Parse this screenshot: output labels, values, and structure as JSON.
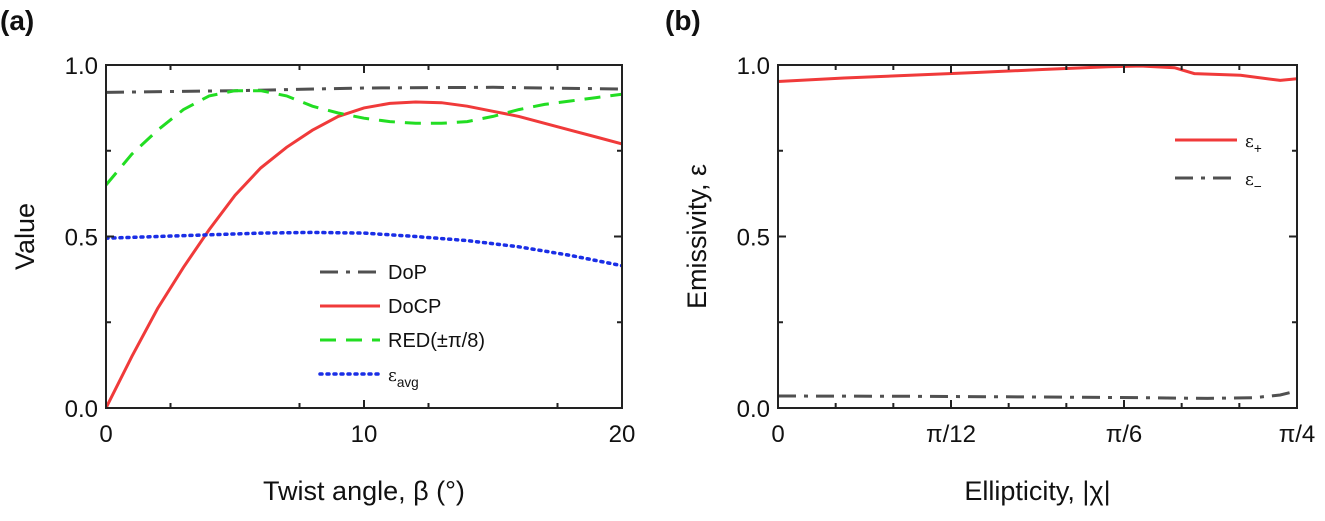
{
  "chart_data": [
    {
      "panel_label": "(a)",
      "type": "line",
      "xlabel": "Twist angle, β (°)",
      "ylabel": "Value",
      "xlim": [
        0,
        20
      ],
      "ylim": [
        0,
        1
      ],
      "xticks": [
        0,
        10,
        20
      ],
      "xtick_labels": [
        "0",
        "10",
        "20"
      ],
      "yticks": [
        0,
        0.5,
        1
      ],
      "ytick_labels": [
        "0.0",
        "0.5",
        "1.0"
      ],
      "legend_position": "bottom-right",
      "grid": false,
      "series": [
        {
          "name": "DoP",
          "color": "#505050",
          "style": "dash-dot",
          "x": [
            0,
            5,
            10,
            15,
            20
          ],
          "y": [
            0.92,
            0.925,
            0.933,
            0.935,
            0.93
          ]
        },
        {
          "name": "DoCP",
          "color": "#f03a3a",
          "style": "solid",
          "x": [
            0,
            1,
            2,
            3,
            4,
            5,
            6,
            7,
            8,
            9,
            10,
            11,
            12,
            13,
            14,
            15,
            16,
            17,
            18,
            19,
            20
          ],
          "y": [
            0,
            0.15,
            0.29,
            0.41,
            0.52,
            0.62,
            0.7,
            0.76,
            0.81,
            0.85,
            0.875,
            0.888,
            0.892,
            0.89,
            0.88,
            0.865,
            0.85,
            0.83,
            0.81,
            0.79,
            0.77
          ]
        },
        {
          "name": "RED(±π/8)",
          "color": "#22dd22",
          "style": "dashed",
          "x": [
            0,
            1,
            2,
            3,
            4,
            5,
            6,
            7,
            8,
            9,
            10,
            11,
            12,
            13,
            14,
            15,
            16,
            17,
            18,
            19,
            20
          ],
          "y": [
            0.65,
            0.74,
            0.81,
            0.87,
            0.91,
            0.925,
            0.925,
            0.91,
            0.88,
            0.86,
            0.845,
            0.835,
            0.83,
            0.83,
            0.835,
            0.85,
            0.87,
            0.885,
            0.895,
            0.905,
            0.915
          ]
        },
        {
          "name": "ε_avg",
          "color": "#1a2ee6",
          "style": "dotted",
          "x": [
            0,
            2,
            4,
            6,
            8,
            10,
            12,
            14,
            16,
            18,
            20
          ],
          "y": [
            0.495,
            0.5,
            0.505,
            0.51,
            0.512,
            0.51,
            0.5,
            0.488,
            0.47,
            0.445,
            0.415
          ]
        }
      ]
    },
    {
      "panel_label": "(b)",
      "type": "line",
      "xlabel": "Ellipticity, |χ|",
      "ylabel": "Emissivity, ε",
      "xlim": [
        0,
        0.7854
      ],
      "ylim": [
        0,
        1
      ],
      "xticks": [
        0,
        0.2618,
        0.5236,
        0.7854
      ],
      "xtick_labels": [
        "0",
        "π/12",
        "π/6",
        "π/4"
      ],
      "yticks": [
        0,
        0.5,
        1
      ],
      "ytick_labels": [
        "0.0",
        "0.5",
        "1.0"
      ],
      "legend_position": "top-right",
      "grid": false,
      "series": [
        {
          "name": "ε+",
          "color": "#f03a3a",
          "style": "solid",
          "x": [
            0,
            0.1,
            0.2,
            0.3,
            0.4,
            0.5,
            0.55,
            0.6,
            0.63,
            0.7,
            0.76,
            0.7854
          ],
          "y": [
            0.952,
            0.962,
            0.97,
            0.978,
            0.987,
            0.995,
            0.997,
            0.992,
            0.975,
            0.97,
            0.955,
            0.96
          ]
        },
        {
          "name": "ε−",
          "color": "#505050",
          "style": "dash-dot",
          "x": [
            0,
            0.2,
            0.4,
            0.55,
            0.65,
            0.72,
            0.76,
            0.7854
          ],
          "y": [
            0.035,
            0.034,
            0.032,
            0.03,
            0.028,
            0.03,
            0.038,
            0.05
          ]
        }
      ]
    }
  ]
}
